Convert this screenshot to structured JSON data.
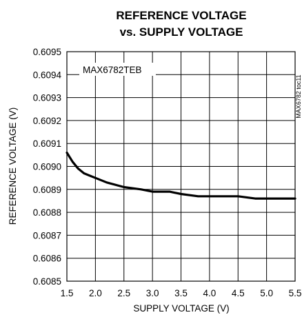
{
  "chart_data": {
    "type": "line",
    "title_line1": "REFERENCE VOLTAGE",
    "title_line2": "vs. SUPPLY VOLTAGE",
    "xlabel": "SUPPLY VOLTAGE (V)",
    "ylabel": "REFERENCE VOLTAGE (V)",
    "annotation": "MAX6782TEB",
    "side_label": "MAX6782 toc11",
    "xlim": [
      1.5,
      5.5
    ],
    "ylim": [
      0.6085,
      0.6095
    ],
    "grid": true,
    "x_ticks": [
      1.5,
      2.0,
      2.5,
      3.0,
      3.5,
      4.0,
      4.5,
      5.0,
      5.5
    ],
    "x_tick_labels": [
      "1.5",
      "2.0",
      "2.5",
      "3.0",
      "3.5",
      "4.0",
      "4.5",
      "5.0",
      "5.5"
    ],
    "y_ticks": [
      0.6085,
      0.6086,
      0.6087,
      0.6088,
      0.6089,
      0.609,
      0.6091,
      0.6092,
      0.6093,
      0.6094,
      0.6095
    ],
    "y_tick_labels": [
      "0.6085",
      "0.6086",
      "0.6087",
      "0.6088",
      "0.6089",
      "0.6090",
      "0.6091",
      "0.6092",
      "0.6093",
      "0.6094",
      "0.6095"
    ],
    "series": [
      {
        "x": [
          1.5,
          1.6,
          1.7,
          1.8,
          2.0,
          2.2,
          2.5,
          2.8,
          3.0,
          3.3,
          3.5,
          3.8,
          4.0,
          4.3,
          4.5,
          4.8,
          5.0,
          5.2,
          5.5
        ],
        "y": [
          0.60906,
          0.60902,
          0.60899,
          0.60897,
          0.60895,
          0.60893,
          0.60891,
          0.6089,
          0.60889,
          0.60889,
          0.60888,
          0.60887,
          0.60887,
          0.60887,
          0.60887,
          0.60886,
          0.60886,
          0.60886,
          0.60886
        ]
      }
    ]
  }
}
